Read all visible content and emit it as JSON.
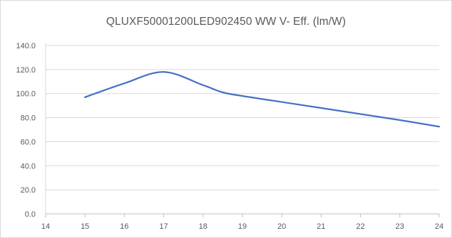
{
  "chart_data": {
    "type": "line",
    "title": "QLUXF50001200LED902450  WW  V- Eff. (lm/W)",
    "xlabel": "",
    "ylabel": "",
    "xlim": [
      14,
      24
    ],
    "ylim": [
      0,
      140
    ],
    "x_ticks": [
      14,
      15,
      16,
      17,
      18,
      19,
      20,
      21,
      22,
      23,
      24
    ],
    "y_ticks": [
      "0.0",
      "20.0",
      "40.0",
      "60.0",
      "80.0",
      "100.0",
      "120.0",
      "140.0"
    ],
    "grid": "horizontal",
    "legend": "none",
    "series": [
      {
        "color": "#4472c4",
        "x": [
          15,
          16,
          17,
          18,
          18.5,
          19,
          20,
          21,
          22,
          23,
          24
        ],
        "y": [
          97,
          108.5,
          118,
          107,
          101,
          98,
          93,
          88,
          83,
          78,
          72.5
        ]
      }
    ]
  }
}
